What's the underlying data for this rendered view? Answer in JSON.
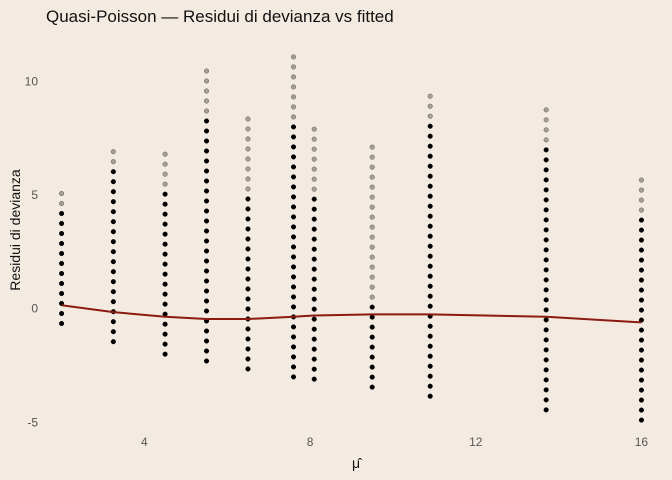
{
  "chart_data": {
    "type": "scatter",
    "title": "Quasi-Poisson — Residui di devianza vs fitted",
    "xlabel": "μ̂",
    "ylabel": "Residui di devianza",
    "xlim": [
      1.6,
      16.4
    ],
    "ylim": [
      -5.6,
      12.0
    ],
    "xticks": [
      4,
      8,
      12,
      16
    ],
    "yticks": [
      -5,
      0,
      5,
      10
    ],
    "grid": false,
    "legend": "none",
    "colors": {
      "points": "#000000",
      "smooth": "#8b1a10",
      "background": "#f3ebe1"
    },
    "point_groups": [
      {
        "x": 2.0,
        "y_min": -0.65,
        "y_max": 5.4,
        "dense_to": 4.2
      },
      {
        "x": 3.25,
        "y_min": -1.45,
        "y_max": 7.2,
        "dense_to": 6.3
      },
      {
        "x": 4.5,
        "y_min": -2.0,
        "y_max": 7.2,
        "dense_to": 5.4
      },
      {
        "x": 5.5,
        "y_min": -2.3,
        "y_max": 10.6,
        "dense_to": 8.5
      },
      {
        "x": 6.5,
        "y_min": -2.65,
        "y_max": 8.5,
        "dense_to": 5.0
      },
      {
        "x": 7.6,
        "y_min": -3.0,
        "y_max": 11.5,
        "dense_to": 8.3
      },
      {
        "x": 8.1,
        "y_min": -3.1,
        "y_max": 8.1,
        "dense_to": 5.2
      },
      {
        "x": 9.5,
        "y_min": -3.45,
        "y_max": 7.2,
        "dense_to": 0.2
      },
      {
        "x": 10.9,
        "y_min": -3.85,
        "y_max": 9.4,
        "dense_to": 8.3
      },
      {
        "x": 13.7,
        "y_min": -4.45,
        "y_max": 8.8,
        "dense_to": 7.3
      },
      {
        "x": 16.0,
        "y_min": -4.9,
        "y_max": 6.0,
        "dense_to": 4.0
      }
    ],
    "smooth_line": {
      "x": [
        2.0,
        3.25,
        4.5,
        5.5,
        6.5,
        7.6,
        8.1,
        9.5,
        10.9,
        13.7,
        16.0
      ],
      "y": [
        0.15,
        -0.15,
        -0.35,
        -0.45,
        -0.45,
        -0.35,
        -0.3,
        -0.25,
        -0.25,
        -0.35,
        -0.6
      ]
    }
  }
}
